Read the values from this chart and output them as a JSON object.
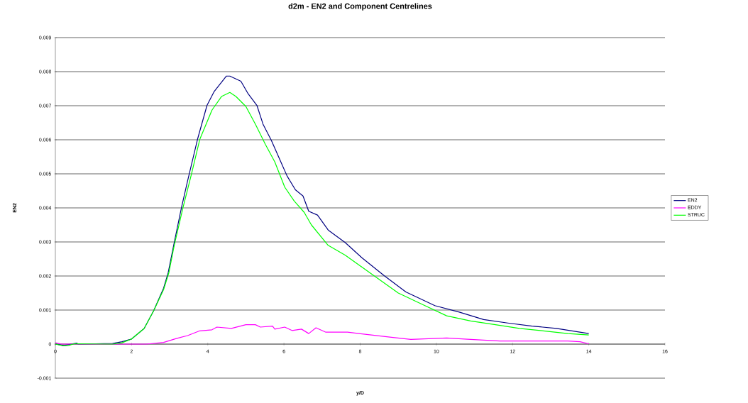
{
  "chart_data": {
    "type": "line",
    "title": "d2m - EN2 and Component Centrelines",
    "xlabel": "y/D",
    "ylabel": "EN2",
    "xlim": [
      0,
      16
    ],
    "xticks": [
      0,
      2,
      4,
      6,
      8,
      10,
      12,
      14,
      16
    ],
    "ylim": [
      -0.001,
      0.009
    ],
    "yticks": [
      -0.001,
      0,
      0.001,
      0.002,
      0.003,
      0.004,
      0.005,
      0.006,
      0.007,
      0.008,
      0.009
    ],
    "grid": "y",
    "legend": "right",
    "series": [
      {
        "name": "EN2",
        "color": "#000080",
        "x": [
          0,
          0.23,
          0.56,
          0.6,
          1.5,
          1.75,
          2.0,
          2.33,
          2.58,
          2.84,
          2.96,
          3.12,
          3.31,
          3.47,
          3.73,
          3.98,
          4.17,
          4.49,
          4.58,
          4.87,
          5.06,
          5.29,
          5.45,
          5.67,
          5.89,
          6.08,
          6.3,
          6.5,
          6.65,
          6.88,
          7.16,
          7.61,
          8.05,
          8.63,
          9.2,
          9.96,
          10.6,
          11.24,
          11.87,
          12.51,
          13.15,
          14.0
        ],
        "values": [
          0,
          -4e-05,
          3e-05,
          0,
          2e-05,
          7e-05,
          0.00015,
          0.00046,
          0.00098,
          0.00164,
          0.00209,
          0.00298,
          0.00401,
          0.00479,
          0.00601,
          0.00701,
          0.00742,
          0.00787,
          0.00787,
          0.00772,
          0.00735,
          0.00701,
          0.00646,
          0.00598,
          0.00542,
          0.00494,
          0.00453,
          0.00435,
          0.0039,
          0.00379,
          0.00335,
          0.00298,
          0.00253,
          0.00201,
          0.00153,
          0.00113,
          0.00094,
          0.00072,
          0.00062,
          0.00053,
          0.00046,
          0.00031
        ]
      },
      {
        "name": "EDDY",
        "color": "#ff00ff",
        "x": [
          0,
          0.17,
          2.39,
          2.84,
          3.16,
          3.47,
          3.79,
          4.11,
          4.24,
          4.62,
          5.0,
          5.25,
          5.38,
          5.7,
          5.76,
          6.02,
          6.21,
          6.46,
          6.65,
          6.84,
          7.1,
          7.67,
          8.05,
          8.82,
          9.33,
          10.27,
          10.9,
          11.67,
          13.45,
          13.77,
          14.0
        ],
        "values": [
          4e-05,
          0,
          0,
          5e-05,
          0.00016,
          0.00025,
          0.00039,
          0.00042,
          0.0005,
          0.00046,
          0.00057,
          0.00057,
          0.0005,
          0.00053,
          0.00044,
          0.0005,
          0.0004,
          0.00044,
          0.00031,
          0.00048,
          0.00035,
          0.00035,
          0.0003,
          0.0002,
          0.00014,
          0.00018,
          0.00014,
          9e-05,
          9e-05,
          7e-05,
          1e-05
        ]
      },
      {
        "name": "STRUC",
        "color": "#00ff00",
        "x": [
          0,
          0.2,
          0.35,
          0.5,
          1.5,
          1.75,
          2.0,
          2.33,
          2.58,
          2.84,
          2.98,
          3.12,
          3.35,
          3.57,
          3.79,
          4.11,
          4.36,
          4.58,
          4.74,
          5.0,
          5.25,
          5.51,
          5.76,
          6.02,
          6.27,
          6.53,
          6.72,
          7.16,
          7.61,
          8.36,
          9.0,
          9.64,
          10.27,
          10.9,
          11.55,
          12.18,
          12.81,
          13.45,
          14.0
        ],
        "values": [
          0,
          -5e-05,
          -4e-05,
          1e-05,
          0,
          4e-05,
          0.00015,
          0.00046,
          0.00098,
          0.0016,
          0.0021,
          0.0029,
          0.00401,
          0.00498,
          0.00601,
          0.00687,
          0.00727,
          0.00739,
          0.00727,
          0.00698,
          0.00646,
          0.00587,
          0.00535,
          0.00461,
          0.0042,
          0.00387,
          0.0035,
          0.0029,
          0.00261,
          0.00201,
          0.0015,
          0.00116,
          0.00083,
          0.00068,
          0.00057,
          0.00046,
          0.00039,
          0.00031,
          0.00027
        ]
      }
    ]
  }
}
